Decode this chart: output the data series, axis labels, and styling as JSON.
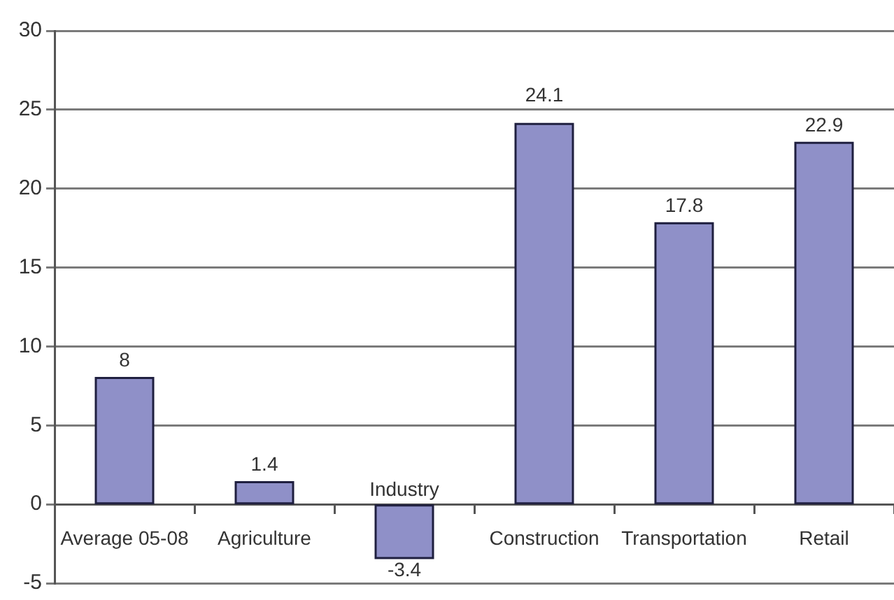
{
  "chart_data": {
    "type": "bar",
    "categories": [
      "Average 05-08",
      "Agriculture",
      "Industry",
      "Construction",
      "Transportation",
      "Retail"
    ],
    "values": [
      8,
      1.4,
      -3.4,
      24.1,
      17.8,
      22.9
    ],
    "color": "#8f90c8",
    "ylim": [
      -5,
      30
    ],
    "yticks": [
      -5,
      0,
      5,
      10,
      15,
      20,
      25,
      30
    ],
    "grid": "y",
    "data_labels": true
  }
}
